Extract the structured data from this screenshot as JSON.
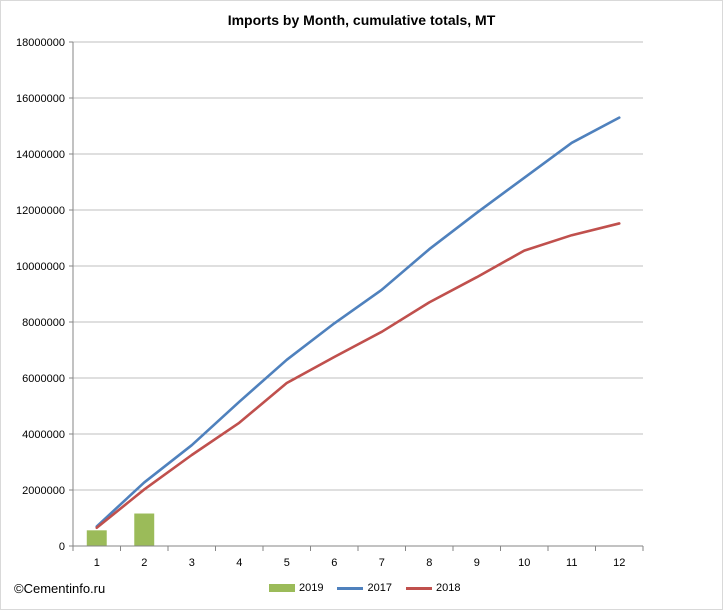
{
  "chart_data": {
    "type": "bar+line",
    "title": "Imports by Month, cumulative totals, MT",
    "categories": [
      1,
      2,
      3,
      4,
      5,
      6,
      7,
      8,
      9,
      10,
      11,
      12
    ],
    "ylim": [
      0,
      18000000
    ],
    "yticks": [
      0,
      2000000,
      4000000,
      6000000,
      8000000,
      10000000,
      12000000,
      14000000,
      16000000,
      18000000
    ],
    "ytick_labels": [
      "0",
      "2000000",
      "4000000",
      "6000000",
      "8000000",
      "10000000",
      "12000000",
      "14000000",
      "16000000",
      "18000000"
    ],
    "grid": true,
    "legend_position": "bottom",
    "series": [
      {
        "name": "2019",
        "kind": "bar",
        "color": "#9bbb59",
        "values": [
          560000,
          1160000,
          null,
          null,
          null,
          null,
          null,
          null,
          null,
          null,
          null,
          null
        ]
      },
      {
        "name": "2017",
        "kind": "line",
        "color": "#4f81bd",
        "values": [
          700000,
          2270000,
          3600000,
          5150000,
          6650000,
          7950000,
          9150000,
          10600000,
          11900000,
          13150000,
          14400000,
          15300000
        ]
      },
      {
        "name": "2018",
        "kind": "line",
        "color": "#c0504d",
        "values": [
          650000,
          2020000,
          3250000,
          4400000,
          5820000,
          6750000,
          7650000,
          8700000,
          9600000,
          10550000,
          11100000,
          11520000
        ]
      }
    ]
  },
  "credit": "©Cementinfo.ru"
}
